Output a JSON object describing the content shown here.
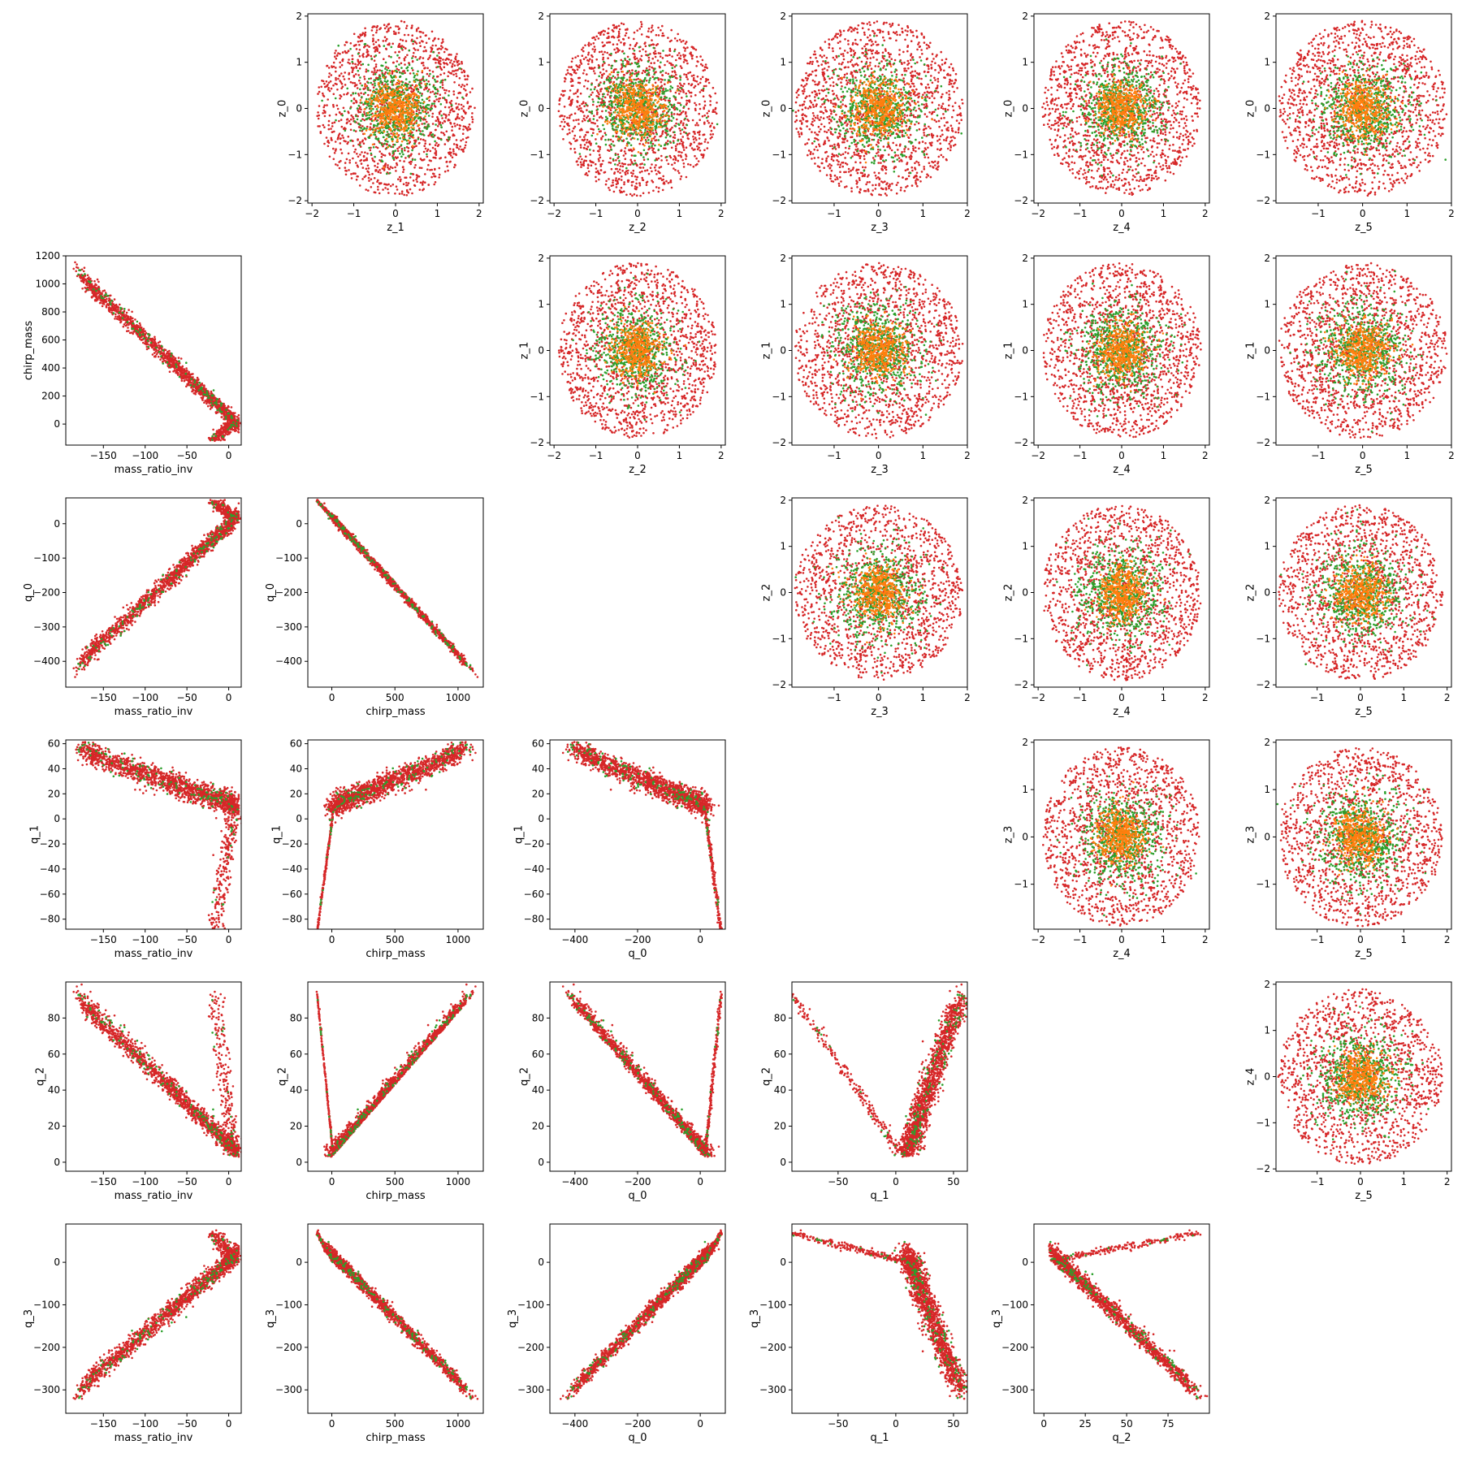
{
  "chart_data": {
    "type": "scatter",
    "layout": "pair-plot",
    "colors": {
      "red": "#d62728",
      "green": "#2ca02c",
      "orange": "#ff7f0e"
    },
    "panels": [
      {
        "row": 0,
        "col": 1,
        "kind": "gauss",
        "xlabel": "z_1",
        "ylabel": "z_0",
        "xlim": [
          -2.1,
          2.1
        ],
        "ylim": [
          -2.05,
          2.05
        ],
        "xticks": [
          -2,
          -1,
          0,
          1,
          2
        ],
        "yticks": [
          -2,
          -1,
          0,
          1,
          2
        ]
      },
      {
        "row": 0,
        "col": 2,
        "kind": "gauss",
        "xlabel": "z_2",
        "ylabel": "z_0",
        "xlim": [
          -2.1,
          2.1
        ],
        "ylim": [
          -2.05,
          2.05
        ],
        "xticks": [
          -2,
          -1,
          0,
          1,
          2
        ],
        "yticks": [
          -2,
          -1,
          0,
          1,
          2
        ]
      },
      {
        "row": 0,
        "col": 3,
        "kind": "gauss",
        "xlabel": "z_3",
        "ylabel": "z_0",
        "xlim": [
          -1.95,
          2.0
        ],
        "ylim": [
          -2.05,
          2.05
        ],
        "xticks": [
          -1,
          0,
          1,
          2
        ],
        "yticks": [
          -2,
          -1,
          0,
          1,
          2
        ]
      },
      {
        "row": 0,
        "col": 4,
        "kind": "gauss",
        "xlabel": "z_4",
        "ylabel": "z_0",
        "xlim": [
          -2.1,
          2.1
        ],
        "ylim": [
          -2.05,
          2.05
        ],
        "xticks": [
          -2,
          -1,
          0,
          1,
          2
        ],
        "yticks": [
          -2,
          -1,
          0,
          1,
          2
        ]
      },
      {
        "row": 0,
        "col": 5,
        "kind": "gauss",
        "xlabel": "z_5",
        "ylabel": "z_0",
        "xlim": [
          -1.95,
          2.0
        ],
        "ylim": [
          -2.05,
          2.05
        ],
        "xticks": [
          -1,
          0,
          1,
          2
        ],
        "yticks": [
          -2,
          -1,
          0,
          1,
          2
        ]
      },
      {
        "row": 1,
        "col": 0,
        "kind": "chirp_vs_mri",
        "xlabel": "mass_ratio_inv",
        "ylabel": "chirp_mass",
        "xlim": [
          -195,
          15
        ],
        "ylim": [
          -150,
          1200
        ],
        "xticks": [
          -150,
          -100,
          -50,
          0
        ],
        "yticks": [
          0,
          200,
          400,
          600,
          800,
          1000,
          1200
        ]
      },
      {
        "row": 1,
        "col": 2,
        "kind": "gauss",
        "xlabel": "z_2",
        "ylabel": "z_1",
        "xlim": [
          -2.1,
          2.1
        ],
        "ylim": [
          -2.05,
          2.05
        ],
        "xticks": [
          -2,
          -1,
          0,
          1,
          2
        ],
        "yticks": [
          -2,
          -1,
          0,
          1,
          2
        ]
      },
      {
        "row": 1,
        "col": 3,
        "kind": "gauss",
        "xlabel": "z_3",
        "ylabel": "z_1",
        "xlim": [
          -1.95,
          2.0
        ],
        "ylim": [
          -2.05,
          2.05
        ],
        "xticks": [
          -1,
          0,
          1,
          2
        ],
        "yticks": [
          -2,
          -1,
          0,
          1,
          2
        ]
      },
      {
        "row": 1,
        "col": 4,
        "kind": "gauss",
        "xlabel": "z_4",
        "ylabel": "z_1",
        "xlim": [
          -2.1,
          2.1
        ],
        "ylim": [
          -2.05,
          2.05
        ],
        "xticks": [
          -2,
          -1,
          0,
          1,
          2
        ],
        "yticks": [
          -2,
          -1,
          0,
          1,
          2
        ]
      },
      {
        "row": 1,
        "col": 5,
        "kind": "gauss",
        "xlabel": "z_5",
        "ylabel": "z_1",
        "xlim": [
          -1.95,
          2.0
        ],
        "ylim": [
          -2.05,
          2.05
        ],
        "xticks": [
          -1,
          0,
          1,
          2
        ],
        "yticks": [
          -2,
          -1,
          0,
          1,
          2
        ]
      },
      {
        "row": 2,
        "col": 0,
        "kind": "q0_vs_mri",
        "xlabel": "mass_ratio_inv",
        "ylabel": "q_0",
        "xlim": [
          -195,
          15
        ],
        "ylim": [
          -475,
          75
        ],
        "xticks": [
          -150,
          -100,
          -50,
          0
        ],
        "yticks": [
          -400,
          -300,
          -200,
          -100,
          0
        ]
      },
      {
        "row": 2,
        "col": 1,
        "kind": "q0_vs_chirp",
        "xlabel": "chirp_mass",
        "ylabel": "q_0",
        "xlim": [
          -190,
          1200
        ],
        "ylim": [
          -475,
          75
        ],
        "xticks": [
          0,
          500,
          1000
        ],
        "yticks": [
          -400,
          -300,
          -200,
          -100,
          0
        ]
      },
      {
        "row": 2,
        "col": 3,
        "kind": "gauss",
        "xlabel": "z_3",
        "ylabel": "z_2",
        "xlim": [
          -1.95,
          2.0
        ],
        "ylim": [
          -2.05,
          2.05
        ],
        "xticks": [
          -1,
          0,
          1,
          2
        ],
        "yticks": [
          -2,
          -1,
          0,
          1,
          2
        ]
      },
      {
        "row": 2,
        "col": 4,
        "kind": "gauss",
        "xlabel": "z_4",
        "ylabel": "z_2",
        "xlim": [
          -2.1,
          2.1
        ],
        "ylim": [
          -2.05,
          2.05
        ],
        "xticks": [
          -2,
          -1,
          0,
          1,
          2
        ],
        "yticks": [
          -2,
          -1,
          0,
          1,
          2
        ]
      },
      {
        "row": 2,
        "col": 5,
        "kind": "gauss",
        "xlabel": "z_5",
        "ylabel": "z_2",
        "xlim": [
          -1.95,
          2.1
        ],
        "ylim": [
          -2.05,
          2.05
        ],
        "xticks": [
          -1,
          0,
          1,
          2
        ],
        "yticks": [
          -2,
          -1,
          0,
          1,
          2
        ]
      },
      {
        "row": 3,
        "col": 0,
        "kind": "q1_vs_mri",
        "xlabel": "mass_ratio_inv",
        "ylabel": "q_1",
        "xlim": [
          -195,
          15
        ],
        "ylim": [
          -88,
          63
        ],
        "xticks": [
          -150,
          -100,
          -50,
          0
        ],
        "yticks": [
          -80,
          -60,
          -40,
          -20,
          0,
          20,
          40,
          60
        ]
      },
      {
        "row": 3,
        "col": 1,
        "kind": "q1_vs_chirp",
        "xlabel": "chirp_mass",
        "ylabel": "q_1",
        "xlim": [
          -190,
          1200
        ],
        "ylim": [
          -88,
          63
        ],
        "xticks": [
          0,
          500,
          1000
        ],
        "yticks": [
          -80,
          -60,
          -40,
          -20,
          0,
          20,
          40,
          60
        ]
      },
      {
        "row": 3,
        "col": 2,
        "kind": "q1_vs_q0",
        "xlabel": "q_0",
        "ylabel": "q_1",
        "xlim": [
          -480,
          80
        ],
        "ylim": [
          -88,
          63
        ],
        "xticks": [
          -400,
          -200,
          0
        ],
        "yticks": [
          -80,
          -60,
          -40,
          -20,
          0,
          20,
          40,
          60
        ]
      },
      {
        "row": 3,
        "col": 4,
        "kind": "gauss",
        "xlabel": "z_4",
        "ylabel": "z_3",
        "xlim": [
          -2.1,
          2.1
        ],
        "ylim": [
          -1.95,
          2.05
        ],
        "xticks": [
          -2,
          -1,
          0,
          1,
          2
        ],
        "yticks": [
          -1,
          0,
          1,
          2
        ]
      },
      {
        "row": 3,
        "col": 5,
        "kind": "gauss",
        "xlabel": "z_5",
        "ylabel": "z_3",
        "xlim": [
          -1.95,
          2.1
        ],
        "ylim": [
          -1.95,
          2.05
        ],
        "xticks": [
          -1,
          0,
          1,
          2
        ],
        "yticks": [
          -1,
          0,
          1,
          2
        ]
      },
      {
        "row": 4,
        "col": 0,
        "kind": "q2_vs_mri",
        "xlabel": "mass_ratio_inv",
        "ylabel": "q_2",
        "xlim": [
          -195,
          15
        ],
        "ylim": [
          -5,
          100
        ],
        "xticks": [
          -150,
          -100,
          -50,
          0
        ],
        "yticks": [
          0,
          20,
          40,
          60,
          80
        ]
      },
      {
        "row": 4,
        "col": 1,
        "kind": "q2_vs_chirp",
        "xlabel": "chirp_mass",
        "ylabel": "q_2",
        "xlim": [
          -190,
          1200
        ],
        "ylim": [
          -5,
          100
        ],
        "xticks": [
          0,
          500,
          1000
        ],
        "yticks": [
          0,
          20,
          40,
          60,
          80
        ]
      },
      {
        "row": 4,
        "col": 2,
        "kind": "q2_vs_q0",
        "xlabel": "q_0",
        "ylabel": "q_2",
        "xlim": [
          -480,
          80
        ],
        "ylim": [
          -5,
          100
        ],
        "xticks": [
          -400,
          -200,
          0
        ],
        "yticks": [
          0,
          20,
          40,
          60,
          80
        ]
      },
      {
        "row": 4,
        "col": 3,
        "kind": "q2_vs_q1",
        "xlabel": "q_1",
        "ylabel": "q_2",
        "xlim": [
          -90,
          62
        ],
        "ylim": [
          -5,
          100
        ],
        "xticks": [
          -50,
          0,
          50
        ],
        "yticks": [
          0,
          20,
          40,
          60,
          80
        ]
      },
      {
        "row": 4,
        "col": 5,
        "kind": "gauss",
        "xlabel": "z_5",
        "ylabel": "z_4",
        "xlim": [
          -1.95,
          2.1
        ],
        "ylim": [
          -2.05,
          2.05
        ],
        "xticks": [
          -1,
          0,
          1,
          2
        ],
        "yticks": [
          -2,
          -1,
          0,
          1,
          2
        ]
      },
      {
        "row": 5,
        "col": 0,
        "kind": "q3_vs_mri",
        "xlabel": "mass_ratio_inv",
        "ylabel": "q_3",
        "xlim": [
          -195,
          15
        ],
        "ylim": [
          -355,
          90
        ],
        "xticks": [
          -150,
          -100,
          -50,
          0
        ],
        "yticks": [
          -300,
          -200,
          -100,
          0
        ]
      },
      {
        "row": 5,
        "col": 1,
        "kind": "q3_vs_chirp",
        "xlabel": "chirp_mass",
        "ylabel": "q_3",
        "xlim": [
          -190,
          1200
        ],
        "ylim": [
          -355,
          90
        ],
        "xticks": [
          0,
          500,
          1000
        ],
        "yticks": [
          -300,
          -200,
          -100,
          0
        ]
      },
      {
        "row": 5,
        "col": 2,
        "kind": "q3_vs_q0",
        "xlabel": "q_0",
        "ylabel": "q_3",
        "xlim": [
          -480,
          80
        ],
        "ylim": [
          -355,
          90
        ],
        "xticks": [
          -400,
          -200,
          0
        ],
        "yticks": [
          -300,
          -200,
          -100,
          0
        ]
      },
      {
        "row": 5,
        "col": 3,
        "kind": "q3_vs_q1",
        "xlabel": "q_1",
        "ylabel": "q_3",
        "xlim": [
          -90,
          62
        ],
        "ylim": [
          -355,
          90
        ],
        "xticks": [
          -50,
          0,
          50
        ],
        "yticks": [
          -300,
          -200,
          -100,
          0
        ]
      },
      {
        "row": 5,
        "col": 4,
        "kind": "q3_vs_q2",
        "xlabel": "q_2",
        "ylabel": "q_3",
        "xlim": [
          -6,
          100
        ],
        "ylim": [
          -355,
          90
        ],
        "xticks": [
          0,
          25,
          50,
          75
        ],
        "yticks": [
          -300,
          -200,
          -100,
          0
        ]
      }
    ]
  }
}
